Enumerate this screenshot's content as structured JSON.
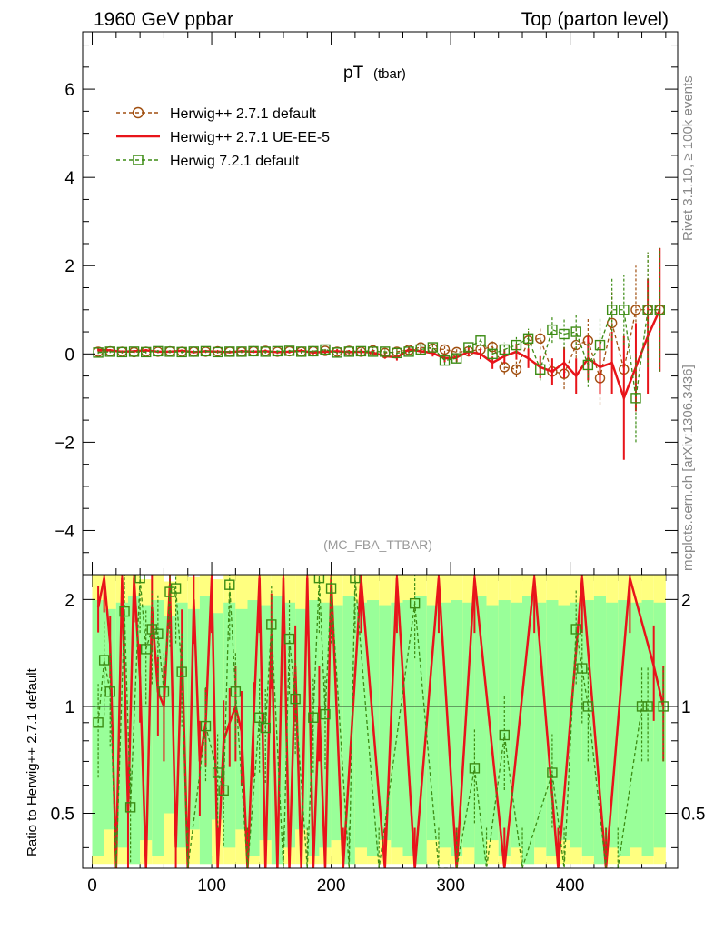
{
  "header": {
    "left": "1960 GeV ppbar",
    "right": "Top (parton level)"
  },
  "side_labels": {
    "rivet": "Rivet 3.1.10, ≥ 100k events",
    "mcplots": "mcplots.cern.ch [arXiv:1306.3436]"
  },
  "chart_data": [
    {
      "panel": "main",
      "type": "line",
      "title_main": "pT",
      "title_sub": "(tbar)",
      "watermark": "(MC_FBA_TTBAR)",
      "xlim": [
        -8,
        490
      ],
      "ylim": [
        -5,
        7.3
      ],
      "xticks": [
        "0",
        "100",
        "200",
        "300",
        "400"
      ],
      "xtick_values": [
        0,
        100,
        200,
        300,
        400
      ],
      "yticks": [
        "−4",
        "−2",
        "0",
        "2",
        "4",
        "6"
      ],
      "ytick_values": [
        -4,
        -2,
        0,
        2,
        4,
        6
      ],
      "legend": [
        {
          "label": "Herwig++ 2.7.1 default",
          "color": "#a04f10",
          "marker": "circle",
          "dash": true
        },
        {
          "label": "Herwig++ 2.7.1 UE-EE-5",
          "color": "#e8141a",
          "marker": "none",
          "dash": false
        },
        {
          "label": "Herwig 7.2.1 default",
          "color": "#3c8c14",
          "marker": "square",
          "dash": true
        }
      ],
      "series": [
        {
          "name": "Herwig++ 2.7.1 default",
          "color": "#a04f10",
          "x": [
            5,
            15,
            25,
            35,
            45,
            55,
            65,
            75,
            85,
            95,
            105,
            115,
            125,
            135,
            145,
            155,
            165,
            175,
            185,
            195,
            205,
            215,
            225,
            235,
            245,
            255,
            265,
            275,
            285,
            295,
            305,
            315,
            325,
            335,
            345,
            355,
            365,
            375,
            385,
            395,
            405,
            415,
            425,
            435,
            445,
            455,
            465,
            475
          ],
          "y": [
            0.05,
            0.06,
            0.05,
            0.04,
            0.05,
            0.05,
            0.06,
            0.05,
            0.05,
            0.05,
            0.06,
            0.05,
            0.05,
            0.06,
            0.07,
            0.05,
            0.06,
            0.05,
            0.06,
            0.07,
            0.05,
            0.07,
            0.05,
            0.08,
            0.02,
            0.05,
            0.09,
            0.15,
            0.12,
            0.1,
            0.04,
            0.06,
            0.1,
            0.16,
            -0.3,
            -0.35,
            0.3,
            0.35,
            -0.4,
            -0.45,
            0.2,
            0.3,
            -0.55,
            0.7,
            -0.35,
            1.0,
            1.0,
            1.0
          ],
          "err": [
            0.03,
            0.03,
            0.03,
            0.03,
            0.03,
            0.03,
            0.03,
            0.03,
            0.03,
            0.03,
            0.03,
            0.03,
            0.03,
            0.03,
            0.04,
            0.04,
            0.04,
            0.04,
            0.04,
            0.05,
            0.05,
            0.05,
            0.06,
            0.06,
            0.06,
            0.07,
            0.07,
            0.08,
            0.08,
            0.09,
            0.1,
            0.11,
            0.12,
            0.14,
            0.16,
            0.18,
            0.22,
            0.25,
            0.3,
            0.35,
            0.4,
            0.5,
            0.6,
            0.7,
            0.8,
            1.0,
            1.3,
            1.4
          ]
        },
        {
          "name": "Herwig++ 2.7.1 UE-EE-5",
          "color": "#e8141a",
          "x": [
            5,
            15,
            25,
            35,
            45,
            55,
            65,
            75,
            85,
            95,
            105,
            115,
            125,
            135,
            145,
            155,
            165,
            175,
            185,
            195,
            205,
            215,
            225,
            235,
            245,
            255,
            265,
            275,
            285,
            295,
            305,
            315,
            325,
            335,
            345,
            355,
            365,
            375,
            385,
            395,
            405,
            415,
            425,
            435,
            445,
            455,
            465,
            475
          ],
          "y": [
            0.09,
            0.08,
            0.05,
            0.06,
            0.08,
            0.05,
            0.05,
            0.07,
            0.04,
            0.06,
            0.05,
            0.04,
            0.06,
            0.05,
            0.06,
            0.04,
            0.05,
            0.07,
            0.03,
            0.05,
            0.06,
            0.04,
            0.05,
            0.03,
            -0.05,
            -0.08,
            0.1,
            0.06,
            0.02,
            -0.1,
            -0.08,
            0.05,
            0.0,
            -0.2,
            -0.05,
            0.05,
            -0.1,
            -0.3,
            -0.4,
            -0.2,
            -0.5,
            -0.1,
            -0.3,
            -0.2,
            -1.0,
            -0.3,
            0.4,
            1.0
          ],
          "err": [
            0.03,
            0.03,
            0.03,
            0.03,
            0.03,
            0.03,
            0.03,
            0.03,
            0.03,
            0.03,
            0.03,
            0.03,
            0.03,
            0.03,
            0.04,
            0.04,
            0.04,
            0.04,
            0.04,
            0.05,
            0.05,
            0.05,
            0.06,
            0.06,
            0.06,
            0.07,
            0.07,
            0.08,
            0.08,
            0.09,
            0.1,
            0.11,
            0.12,
            0.14,
            0.16,
            0.18,
            0.22,
            0.25,
            0.3,
            0.35,
            0.4,
            0.5,
            0.6,
            0.7,
            1.4,
            1.0,
            1.3,
            1.4
          ]
        },
        {
          "name": "Herwig 7.2.1 default",
          "color": "#3c8c14",
          "x": [
            5,
            15,
            25,
            35,
            45,
            55,
            65,
            75,
            85,
            95,
            105,
            115,
            125,
            135,
            145,
            155,
            165,
            175,
            185,
            195,
            205,
            215,
            225,
            235,
            245,
            255,
            265,
            275,
            285,
            295,
            305,
            315,
            325,
            335,
            345,
            355,
            365,
            375,
            385,
            395,
            405,
            415,
            425,
            435,
            445,
            455,
            465,
            475
          ],
          "y": [
            0.03,
            0.05,
            0.04,
            0.05,
            0.04,
            0.06,
            0.05,
            0.04,
            0.05,
            0.06,
            0.04,
            0.05,
            0.05,
            0.06,
            0.05,
            0.06,
            0.07,
            0.05,
            0.06,
            0.1,
            0.03,
            0.05,
            0.06,
            0.05,
            0.05,
            0.02,
            0.05,
            0.1,
            0.15,
            -0.15,
            -0.1,
            0.15,
            0.3,
            0.0,
            0.1,
            0.2,
            0.35,
            -0.35,
            0.55,
            0.45,
            0.5,
            -0.25,
            0.2,
            1.0,
            1.0,
            -1.0,
            1.0,
            1.0
          ],
          "err": [
            0.03,
            0.03,
            0.03,
            0.03,
            0.03,
            0.03,
            0.03,
            0.03,
            0.03,
            0.03,
            0.03,
            0.03,
            0.03,
            0.03,
            0.04,
            0.04,
            0.04,
            0.04,
            0.04,
            0.05,
            0.05,
            0.05,
            0.06,
            0.06,
            0.06,
            0.07,
            0.07,
            0.08,
            0.08,
            0.09,
            0.1,
            0.11,
            0.12,
            0.14,
            0.16,
            0.18,
            0.22,
            0.25,
            0.3,
            0.35,
            0.4,
            0.5,
            0.6,
            0.7,
            0.8,
            1.0,
            1.3,
            1.4
          ]
        }
      ]
    },
    {
      "panel": "ratio",
      "type": "line",
      "ylabel": "Ratio to Herwig++ 2.7.1 default",
      "xlim": [
        -8,
        490
      ],
      "ylim": [
        0.35,
        2.35
      ],
      "yticks": [
        "0.5",
        "1",
        "2"
      ],
      "ytick_values": [
        0.5,
        1,
        2
      ],
      "band_colors": {
        "yellow": "#ffff80",
        "green": "#99ff99"
      },
      "band_x": [
        5,
        15,
        25,
        35,
        45,
        55,
        65,
        75,
        85,
        95,
        105,
        115,
        125,
        135,
        145,
        155,
        165,
        175,
        185,
        195,
        205,
        215,
        225,
        235,
        245,
        255,
        265,
        275,
        285,
        295,
        305,
        315,
        325,
        335,
        345,
        355,
        365,
        375,
        385,
        395,
        405,
        415,
        425,
        435,
        445,
        455,
        465,
        475
      ],
      "band_green_halfwidth": [
        0.62,
        0.55,
        0.6,
        0.65,
        0.58,
        0.62,
        0.5,
        0.6,
        0.55,
        0.65,
        0.52,
        0.6,
        0.55,
        0.62,
        0.58,
        0.65,
        0.6,
        0.55,
        0.62,
        0.6,
        0.58,
        0.65,
        0.6,
        0.62,
        0.58,
        0.6,
        0.62,
        0.65,
        0.58,
        0.6,
        0.62,
        0.6,
        0.65,
        0.58,
        0.62,
        0.6,
        0.65,
        0.6,
        0.62,
        0.58,
        0.6,
        0.62,
        0.65,
        0.6,
        0.62,
        0.6,
        0.62,
        0.6
      ],
      "band_yellow_halfwidth": [
        0.9,
        0.85,
        0.88,
        0.92,
        0.8,
        0.9,
        0.78,
        0.85,
        0.82,
        0.92,
        0.8,
        0.88,
        0.84,
        0.9,
        0.86,
        0.92,
        0.88,
        0.84,
        0.9,
        0.88,
        0.86,
        0.92,
        0.88,
        0.9,
        0.86,
        0.88,
        0.9,
        0.92,
        0.86,
        0.88,
        0.9,
        0.88,
        0.92,
        0.86,
        0.9,
        0.88,
        0.92,
        0.88,
        0.9,
        0.86,
        0.88,
        0.9,
        0.92,
        0.88,
        0.9,
        0.88,
        0.9,
        0.88
      ],
      "series": [
        {
          "name": "Herwig++ 2.7.1 UE-EE-5",
          "color": "#e8141a",
          "x": [
            5,
            10,
            15,
            20,
            25,
            30,
            35,
            40,
            45,
            50,
            55,
            60,
            65,
            70,
            75,
            80,
            85,
            90,
            95,
            100,
            105,
            110,
            115,
            120,
            125,
            130,
            135,
            140,
            145,
            150,
            155,
            160,
            165,
            170,
            175,
            180,
            185,
            190,
            195,
            200,
            210,
            225,
            245,
            255,
            270,
            290,
            305,
            320,
            345,
            370,
            390,
            410,
            430,
            450,
            470,
            478
          ],
          "y": [
            1.9,
            2.3,
            1.5,
            0.35,
            2.3,
            0.5,
            2.3,
            1.2,
            0.35,
            1.9,
            1.1,
            1.0,
            2.2,
            0.4,
            1.5,
            0.35,
            2.0,
            0.7,
            0.9,
            2.3,
            0.35,
            0.8,
            0.9,
            1.0,
            0.85,
            0.35,
            0.9,
            2.3,
            0.35,
            1.6,
            0.35,
            2.3,
            0.35,
            1.3,
            0.35,
            2.3,
            0.35,
            1.0,
            0.35,
            2.3,
            0.35,
            2.3,
            0.35,
            2.3,
            0.35,
            2.3,
            0.35,
            2.3,
            0.35,
            2.3,
            0.35,
            2.3,
            0.35,
            2.3,
            1.3,
            1.0
          ],
          "err": [
            0.15,
            0.2,
            0.2,
            0.3,
            0.25,
            0.3,
            0.25,
            0.25,
            0.3,
            0.25,
            0.25,
            0.3,
            0.25,
            0.3,
            0.25,
            0.3,
            0.25,
            0.3,
            0.25,
            0.3,
            0.3,
            0.3,
            0.25,
            0.3,
            0.3,
            0.3,
            0.3,
            0.3,
            0.3,
            0.3,
            0.3,
            0.3,
            0.3,
            0.3,
            0.3,
            0.3,
            0.3,
            0.3,
            0.3,
            0.3,
            0.3,
            0.3,
            0.3,
            0.3,
            0.3,
            0.3,
            0.3,
            0.3,
            0.3,
            0.3,
            0.3,
            0.3,
            0.3,
            0.3,
            0.3,
            0.3
          ]
        },
        {
          "name": "Herwig 7.2.1 default",
          "color": "#3c8c14",
          "x": [
            5,
            10,
            15,
            20,
            27,
            32,
            40,
            45,
            50,
            55,
            60,
            65,
            70,
            75,
            80,
            95,
            105,
            110,
            115,
            120,
            130,
            140,
            145,
            150,
            160,
            165,
            170,
            180,
            185,
            190,
            195,
            200,
            215,
            220,
            240,
            270,
            290,
            305,
            320,
            330,
            345,
            360,
            385,
            395,
            405,
            410,
            415,
            430,
            440,
            460,
            465,
            478
          ],
          "y": [
            0.9,
            1.35,
            1.1,
            0.35,
            1.85,
            0.52,
            2.3,
            1.45,
            1.65,
            1.6,
            1.1,
            2.1,
            2.15,
            1.25,
            0.35,
            0.88,
            0.65,
            0.58,
            2.2,
            1.1,
            0.35,
            0.93,
            0.87,
            1.7,
            0.35,
            1.55,
            1.05,
            0.35,
            0.93,
            2.3,
            0.95,
            2.15,
            0.35,
            2.3,
            0.35,
            1.95,
            0.35,
            0.35,
            0.67,
            0.35,
            0.83,
            0.35,
            0.65,
            0.35,
            1.65,
            1.28,
            1.0,
            0.35,
            0.35,
            1.0,
            1.0,
            1.0
          ],
          "err": [
            0.3,
            0.3,
            0.3,
            0.3,
            0.3,
            0.3,
            0.3,
            0.3,
            0.3,
            0.3,
            0.3,
            0.3,
            0.3,
            0.3,
            0.3,
            0.3,
            0.3,
            0.3,
            0.3,
            0.3,
            0.3,
            0.3,
            0.3,
            0.3,
            0.3,
            0.3,
            0.3,
            0.3,
            0.3,
            0.3,
            0.3,
            0.3,
            0.3,
            0.3,
            0.3,
            0.3,
            0.3,
            0.3,
            0.3,
            0.3,
            0.3,
            0.3,
            0.3,
            0.3,
            0.3,
            0.3,
            0.3,
            0.3,
            0.3,
            0.3,
            0.3,
            0.3
          ]
        }
      ]
    }
  ]
}
